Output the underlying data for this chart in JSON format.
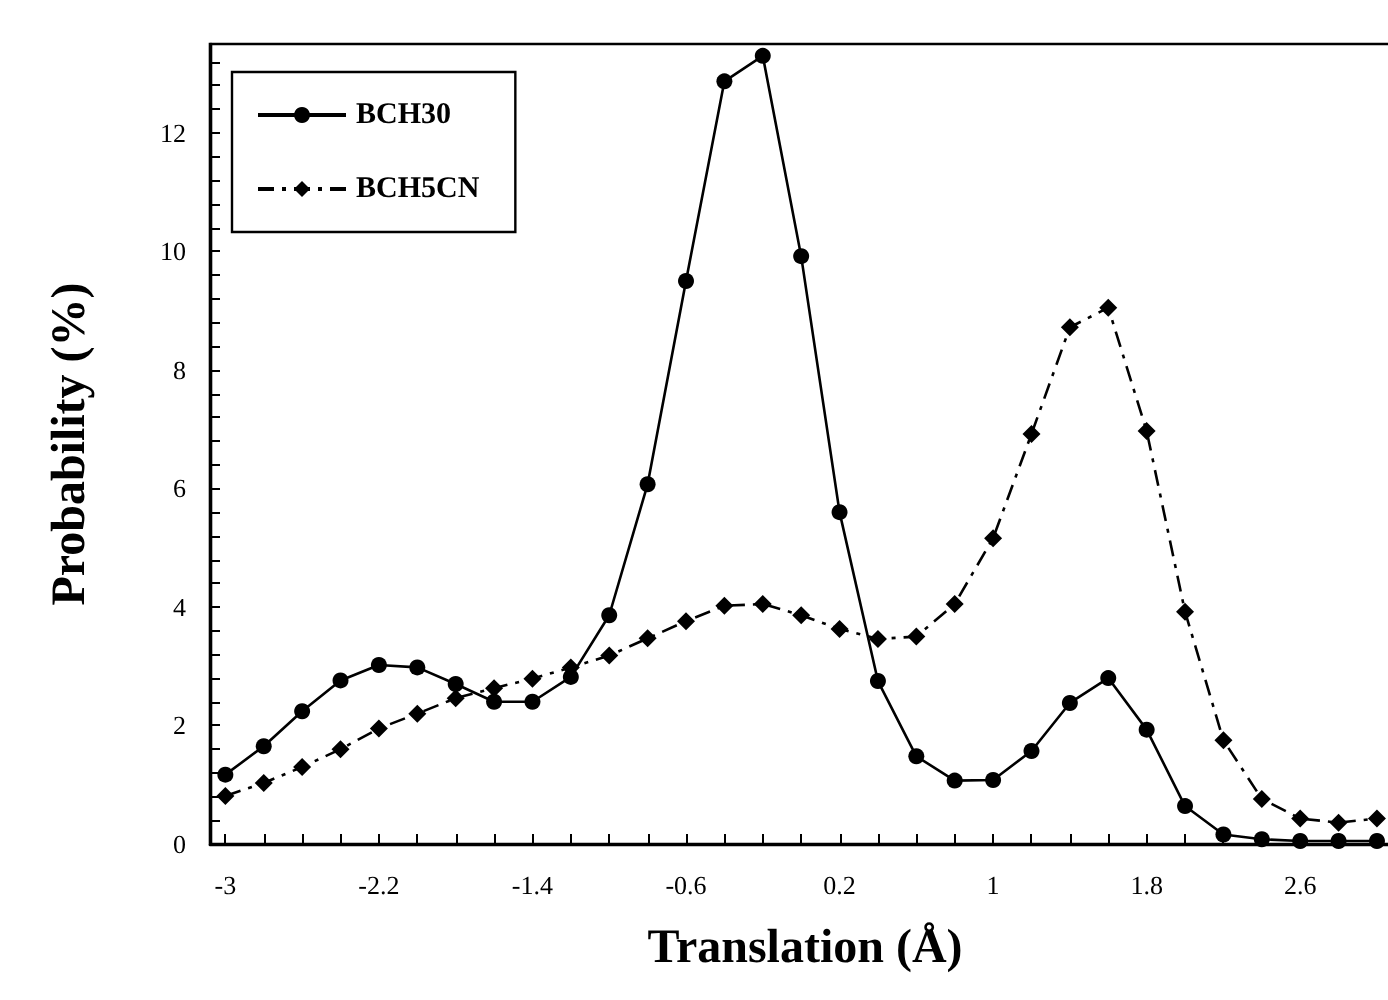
{
  "chart_data": {
    "type": "line",
    "xlabel": "Translation (Å)",
    "ylabel": "Probability (%)",
    "x": [
      -3,
      -2.8,
      -2.6,
      -2.4,
      -2.2,
      -2,
      -1.8,
      -1.6,
      -1.4,
      -1.2,
      -1,
      -0.8,
      -0.6,
      -0.4,
      -0.2,
      0,
      0.2,
      0.4,
      0.6,
      0.8,
      1,
      1.2,
      1.4,
      1.6,
      1.8,
      2,
      2.2,
      2.4,
      2.6,
      2.8,
      3
    ],
    "series": [
      {
        "name": "BCH30",
        "color": "#000000",
        "marker": "circle",
        "line_style": "solid",
        "values": [
          1.17,
          1.65,
          2.24,
          2.76,
          3.02,
          2.98,
          2.7,
          2.4,
          2.4,
          2.82,
          3.86,
          6.07,
          9.5,
          12.87,
          13.3,
          9.92,
          5.6,
          2.75,
          1.48,
          1.07,
          1.08,
          1.57,
          2.38,
          2.8,
          1.93,
          0.64,
          0.16,
          0.08,
          0.05,
          0.05,
          0.05
        ]
      },
      {
        "name": "BCH5CN",
        "color": "#000000",
        "marker": "diamond",
        "line_style": "dashed",
        "values": [
          0.81,
          1.03,
          1.3,
          1.6,
          1.95,
          2.2,
          2.46,
          2.63,
          2.79,
          2.98,
          3.18,
          3.47,
          3.76,
          4.02,
          4.05,
          3.86,
          3.63,
          3.46,
          3.5,
          4.05,
          5.16,
          6.92,
          8.72,
          9.05,
          6.97,
          3.92,
          1.75,
          0.76,
          0.43,
          0.36,
          0.43
        ]
      }
    ],
    "xlim": [
      -3.08,
      3.12
    ],
    "xticks": [
      -3,
      {
        "value": -2.8,
        "label": null
      },
      {
        "value": -2.6,
        "label": null
      },
      {
        "value": -2.4,
        "label": null
      },
      -2.2,
      {
        "value": -2,
        "label": null
      },
      {
        "value": -1.8,
        "label": null
      },
      {
        "value": -1.6,
        "label": null
      },
      -1.4,
      {
        "value": -1.2,
        "label": null
      },
      {
        "value": -1,
        "label": null
      },
      {
        "value": -0.8,
        "label": null
      },
      -0.6,
      {
        "value": -0.4,
        "label": null
      },
      {
        "value": -0.2,
        "label": null
      },
      {
        "value": 0,
        "label": null
      },
      0.2,
      {
        "value": 0.4,
        "label": null
      },
      {
        "value": 0.6,
        "label": null
      },
      {
        "value": 0.8,
        "label": null
      },
      1,
      {
        "value": 1.2,
        "label": null
      },
      {
        "value": 1.4,
        "label": null
      },
      {
        "value": 1.6,
        "label": null
      },
      1.8,
      {
        "value": 2,
        "label": null
      },
      {
        "value": 2.2,
        "label": null
      },
      {
        "value": 2.4,
        "label": null
      },
      2.6,
      {
        "value": 2.8,
        "label": null
      },
      {
        "value": 3,
        "label": null
      }
    ],
    "ylim": [
      0,
      13.5
    ],
    "yticks": [
      0,
      {
        "value": 0.4,
        "label": null
      },
      {
        "value": 0.8,
        "label": null
      },
      {
        "value": 1.2,
        "label": null
      },
      {
        "value": 1.6,
        "label": null
      },
      2,
      {
        "value": 2.4,
        "label": null
      },
      {
        "value": 2.8,
        "label": null
      },
      {
        "value": 3.2,
        "label": null
      },
      {
        "value": 3.6,
        "label": null
      },
      4,
      {
        "value": 4.4,
        "label": null
      },
      {
        "value": 4.8,
        "label": null
      },
      {
        "value": 5.2,
        "label": null
      },
      {
        "value": 5.6,
        "label": null
      },
      6,
      {
        "value": 6.4,
        "label": null
      },
      {
        "value": 6.8,
        "label": null
      },
      {
        "value": 7.2,
        "label": null
      },
      {
        "value": 7.6,
        "label": null
      },
      8,
      {
        "value": 8.4,
        "label": null
      },
      {
        "value": 8.8,
        "label": null
      },
      {
        "value": 9.2,
        "label": null
      },
      {
        "value": 9.6,
        "label": null
      },
      10,
      {
        "value": 10.4,
        "label": null
      },
      {
        "value": 10.8,
        "label": null
      },
      {
        "value": 11.2,
        "label": null
      },
      {
        "value": 11.6,
        "label": null
      },
      12,
      {
        "value": 12.4,
        "label": null
      },
      {
        "value": 12.8,
        "label": null
      },
      {
        "value": 13.2,
        "label": null
      }
    ],
    "grid": false,
    "legend": "top left"
  }
}
